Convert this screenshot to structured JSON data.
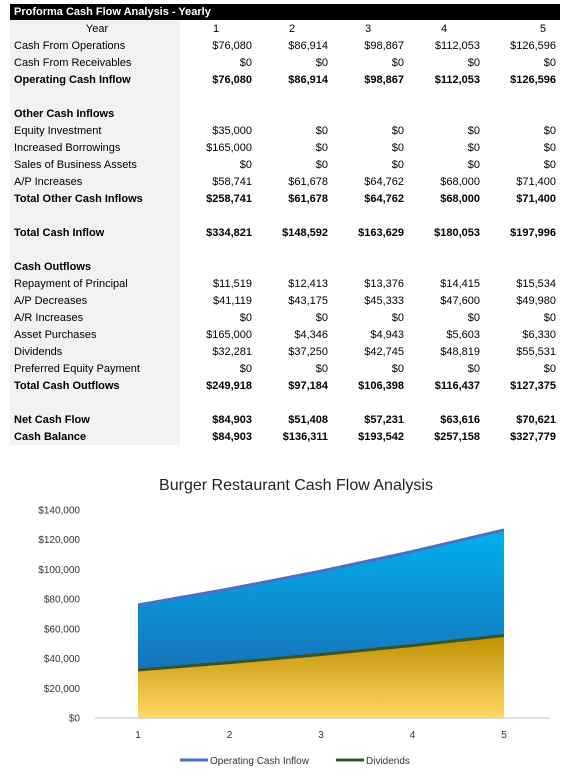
{
  "table": {
    "title": "Proforma Cash Flow Analysis - Yearly",
    "year_label": "Year",
    "years": [
      "1",
      "2",
      "3",
      "4",
      "5"
    ],
    "rows": [
      {
        "label": "Cash From Operations",
        "values": [
          "$76,080",
          "$86,914",
          "$98,867",
          "$112,053",
          "$126,596"
        ],
        "bold": false
      },
      {
        "label": "Cash From Receivables",
        "values": [
          "$0",
          "$0",
          "$0",
          "$0",
          "$0"
        ],
        "bold": false
      },
      {
        "label": "Operating Cash Inflow",
        "values": [
          "$76,080",
          "$86,914",
          "$98,867",
          "$112,053",
          "$126,596"
        ],
        "bold": true
      },
      {
        "label": "",
        "values": [
          "",
          "",
          "",
          "",
          ""
        ],
        "bold": false
      },
      {
        "label": "Other Cash Inflows",
        "values": [
          "",
          "",
          "",
          "",
          ""
        ],
        "bold": true
      },
      {
        "label": "Equity Investment",
        "values": [
          "$35,000",
          "$0",
          "$0",
          "$0",
          "$0"
        ],
        "bold": false
      },
      {
        "label": "Increased Borrowings",
        "values": [
          "$165,000",
          "$0",
          "$0",
          "$0",
          "$0"
        ],
        "bold": false
      },
      {
        "label": "Sales of Business Assets",
        "values": [
          "$0",
          "$0",
          "$0",
          "$0",
          "$0"
        ],
        "bold": false
      },
      {
        "label": "A/P Increases",
        "values": [
          "$58,741",
          "$61,678",
          "$64,762",
          "$68,000",
          "$71,400"
        ],
        "bold": false
      },
      {
        "label": "Total Other Cash Inflows",
        "values": [
          "$258,741",
          "$61,678",
          "$64,762",
          "$68,000",
          "$71,400"
        ],
        "bold": true
      },
      {
        "label": "",
        "values": [
          "",
          "",
          "",
          "",
          ""
        ],
        "bold": false
      },
      {
        "label": "Total Cash Inflow",
        "values": [
          "$334,821",
          "$148,592",
          "$163,629",
          "$180,053",
          "$197,996"
        ],
        "bold": true
      },
      {
        "label": "",
        "values": [
          "",
          "",
          "",
          "",
          ""
        ],
        "bold": false
      },
      {
        "label": "Cash Outflows",
        "values": [
          "",
          "",
          "",
          "",
          ""
        ],
        "bold": true
      },
      {
        "label": "Repayment of Principal",
        "values": [
          "$11,519",
          "$12,413",
          "$13,376",
          "$14,415",
          "$15,534"
        ],
        "bold": false
      },
      {
        "label": "A/P Decreases",
        "values": [
          "$41,119",
          "$43,175",
          "$45,333",
          "$47,600",
          "$49,980"
        ],
        "bold": false
      },
      {
        "label": "A/R Increases",
        "values": [
          "$0",
          "$0",
          "$0",
          "$0",
          "$0"
        ],
        "bold": false
      },
      {
        "label": "Asset Purchases",
        "values": [
          "$165,000",
          "$4,346",
          "$4,943",
          "$5,603",
          "$6,330"
        ],
        "bold": false
      },
      {
        "label": "Dividends",
        "values": [
          "$32,281",
          "$37,250",
          "$42,745",
          "$48,819",
          "$55,531"
        ],
        "bold": false
      },
      {
        "label": "Preferred Equity Payment",
        "values": [
          "$0",
          "$0",
          "$0",
          "$0",
          "$0"
        ],
        "bold": false
      },
      {
        "label": "Total Cash Outflows",
        "values": [
          "$249,918",
          "$97,184",
          "$106,398",
          "$116,437",
          "$127,375"
        ],
        "bold": true
      },
      {
        "label": "",
        "values": [
          "",
          "",
          "",
          "",
          ""
        ],
        "bold": false
      },
      {
        "label": "Net Cash Flow",
        "values": [
          "$84,903",
          "$51,408",
          "$57,231",
          "$63,616",
          "$70,621"
        ],
        "bold": true
      },
      {
        "label": "Cash Balance",
        "values": [
          "$84,903",
          "$136,311",
          "$193,542",
          "$257,158",
          "$327,779"
        ],
        "bold": true
      }
    ]
  },
  "chart_data": {
    "type": "area",
    "title": "Burger Restaurant Cash Flow Analysis",
    "x": [
      1,
      2,
      3,
      4,
      5
    ],
    "x_tick_labels": [
      "1",
      "2",
      "3",
      "4",
      "5"
    ],
    "ylim": [
      0,
      140000
    ],
    "y_ticks": [
      0,
      20000,
      40000,
      60000,
      80000,
      100000,
      120000,
      140000
    ],
    "y_tick_labels": [
      "$0",
      "$20,000",
      "$40,000",
      "$60,000",
      "$80,000",
      "$100,000",
      "$120,000",
      "$140,000"
    ],
    "grid": false,
    "legend_position": "bottom",
    "series": [
      {
        "name": "Operating Cash Inflow",
        "values": [
          76080,
          86914,
          98867,
          112053,
          126596
        ],
        "line_color": "#4472c4",
        "fill_top": "#00b0f0",
        "fill_bottom": "#1f5fa8"
      },
      {
        "name": "Dividends",
        "values": [
          32281,
          37250,
          42745,
          48819,
          55531
        ],
        "line_color": "#375623",
        "fill_top": "#c09000",
        "fill_bottom": "#ffd966"
      }
    ]
  }
}
